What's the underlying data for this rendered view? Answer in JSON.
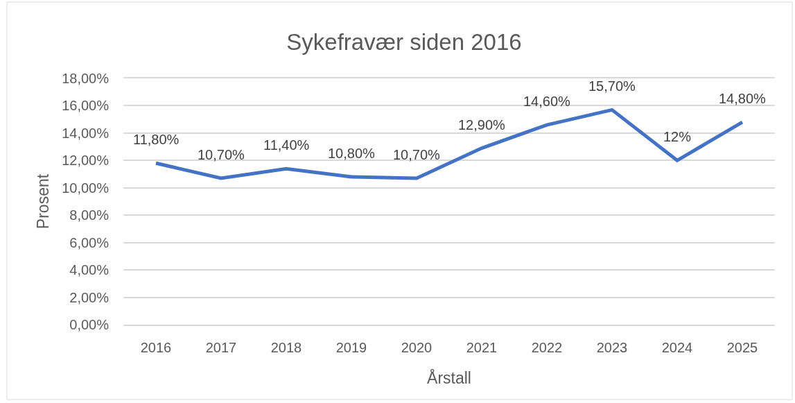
{
  "chart_data": {
    "type": "line",
    "title": "Sykefravær siden 2016",
    "xlabel": "Årstall",
    "ylabel": "Prosent",
    "categories": [
      "2016",
      "2017",
      "2018",
      "2019",
      "2020",
      "2021",
      "2022",
      "2023",
      "2024",
      "2025"
    ],
    "series": [
      {
        "color": "#4472c4",
        "values": [
          11.8,
          10.7,
          11.4,
          10.8,
          10.7,
          12.9,
          14.6,
          15.7,
          12,
          14.8
        ],
        "value_labels": [
          "11,80%",
          "10,70%",
          "11,40%",
          "10,80%",
          "10,70%",
          "12,90%",
          "14,60%",
          "15,70%",
          "12%",
          "14,80%"
        ]
      }
    ],
    "ylim": [
      0,
      18
    ],
    "yticks": [
      {
        "value": 0,
        "label": "0,00%"
      },
      {
        "value": 2,
        "label": "2,00%"
      },
      {
        "value": 4,
        "label": "4,00%"
      },
      {
        "value": 6,
        "label": "6,00%"
      },
      {
        "value": 8,
        "label": "8,00%"
      },
      {
        "value": 10,
        "label": "10,00%"
      },
      {
        "value": 12,
        "label": "12,00%"
      },
      {
        "value": 14,
        "label": "14,00%"
      },
      {
        "value": 16,
        "label": "16,00%"
      },
      {
        "value": 18,
        "label": "18,00%"
      }
    ],
    "grid": "y",
    "marker": "none",
    "line_style": "solid"
  }
}
